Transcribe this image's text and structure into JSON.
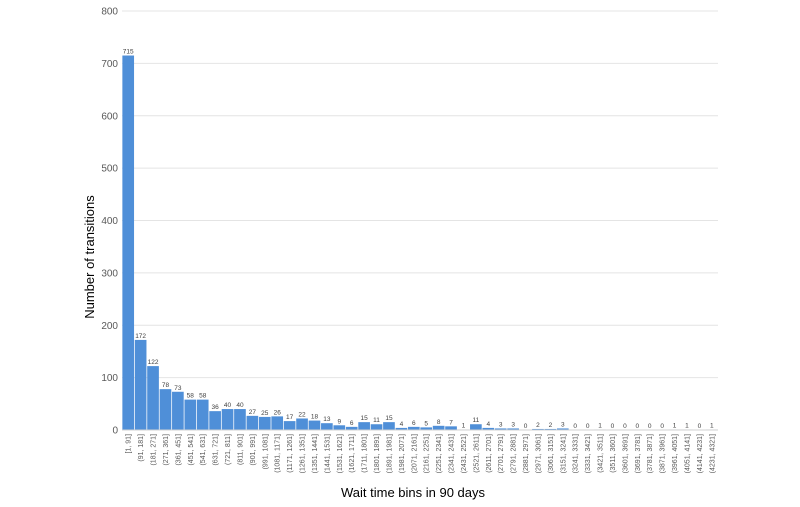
{
  "chart_data": {
    "type": "bar",
    "xlabel": "Wait time bins in 90 days",
    "ylabel": "Number of transitions",
    "ylim": [
      0,
      800
    ],
    "yticks": [
      0,
      100,
      200,
      300,
      400,
      500,
      600,
      700,
      800
    ],
    "grid": true,
    "bar_color": "#4f8fd8",
    "categories": [
      "[1, 91]",
      "(91, 181]",
      "(181, 271]",
      "(271, 361]",
      "(361, 451]",
      "(451, 541]",
      "(541, 631]",
      "(631, 721]",
      "(721, 811]",
      "(811, 901]",
      "(901, 991]",
      "(991, 1081]",
      "(1081, 1171]",
      "(1171, 1261]",
      "(1261, 1351]",
      "(1351, 1441]",
      "(1441, 1531]",
      "(1531, 1621]",
      "(1621, 1711]",
      "(1711, 1801]",
      "(1801, 1891]",
      "(1891, 1981]",
      "(1981, 2071]",
      "(2071, 2161]",
      "(2161, 2251]",
      "(2251, 2341]",
      "(2341, 2431]",
      "(2431, 2521]",
      "(2521, 2611]",
      "(2611, 2701]",
      "(2701, 2791]",
      "(2791, 2881]",
      "(2881, 2971]",
      "(2971, 3061]",
      "(3061, 3151]",
      "(3151, 3241]",
      "(3241, 3331]",
      "(3331, 3421]",
      "(3421, 3511]",
      "(3511, 3601]",
      "(3601, 3691]",
      "(3691, 3781]",
      "(3781, 3871]",
      "(3871, 3961]",
      "(3961, 4051]",
      "(4051, 4141]",
      "(4141, 4231]",
      "(4231, 4321]"
    ],
    "values": [
      715,
      172,
      122,
      78,
      73,
      58,
      58,
      36,
      40,
      40,
      27,
      25,
      26,
      17,
      22,
      18,
      13,
      9,
      6,
      15,
      11,
      15,
      4,
      6,
      5,
      8,
      7,
      1,
      11,
      4,
      3,
      3,
      0,
      2,
      2,
      3,
      0,
      0,
      1,
      0,
      0,
      0,
      0,
      0,
      1,
      1,
      0,
      1
    ]
  }
}
